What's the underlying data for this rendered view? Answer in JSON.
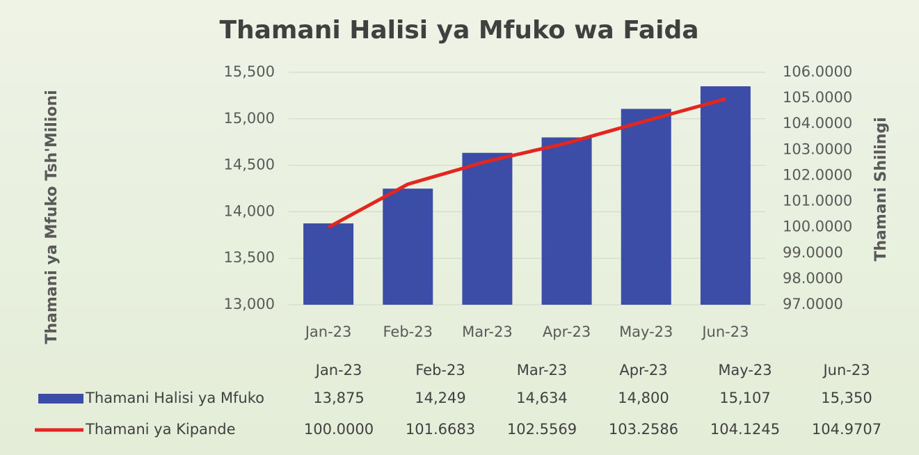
{
  "chart_data": {
    "type": "bar",
    "title": "Thamani Halisi ya Mfuko wa Faida",
    "y_axis_label": "Thamani ya Mfuko Tsh'Milioni",
    "y2_axis_label": "Thamani Shilingi",
    "categories": [
      "Jan-23",
      "Feb-23",
      "Mar-23",
      "Apr-23",
      "May-23",
      "Jun-23"
    ],
    "series": [
      {
        "name": "Thamani Halisi ya Mfuko",
        "type": "bar",
        "color": "#3b4da6",
        "values": [
          13875,
          14249,
          14634,
          14800,
          15107,
          15350
        ],
        "value_labels": [
          "13,875",
          "14,249",
          "14,634",
          "14,800",
          "15,107",
          "15,350"
        ]
      },
      {
        "name": "Thamani ya Kipande",
        "type": "line",
        "axis": "y2",
        "color": "#e3261f",
        "values": [
          100.0,
          101.6683,
          102.5569,
          103.2586,
          104.1245,
          104.9707
        ],
        "value_labels": [
          "100.0000",
          "101.6683",
          "102.5569",
          "103.2586",
          "104.1245",
          "104.9707"
        ]
      }
    ],
    "ylim": [
      13000,
      15500
    ],
    "yticks": [
      {
        "value": 13000,
        "label": "13,000"
      },
      {
        "value": 13500,
        "label": "13,500"
      },
      {
        "value": 14000,
        "label": "14,000"
      },
      {
        "value": 14500,
        "label": "14,500"
      },
      {
        "value": 15000,
        "label": "15,000"
      },
      {
        "value": 15500,
        "label": "15,500"
      }
    ],
    "y2lim": [
      97,
      106
    ],
    "y2ticks": [
      {
        "value": 97,
        "label": "97.0000"
      },
      {
        "value": 98,
        "label": "98.0000"
      },
      {
        "value": 99,
        "label": "99.0000"
      },
      {
        "value": 100,
        "label": "100.0000"
      },
      {
        "value": 101,
        "label": "101.0000"
      },
      {
        "value": 102,
        "label": "102.0000"
      },
      {
        "value": 103,
        "label": "103.0000"
      },
      {
        "value": 104,
        "label": "104.0000"
      },
      {
        "value": 105,
        "label": "105.0000"
      },
      {
        "value": 106,
        "label": "106.0000"
      }
    ],
    "grid": true,
    "data_table": true
  }
}
